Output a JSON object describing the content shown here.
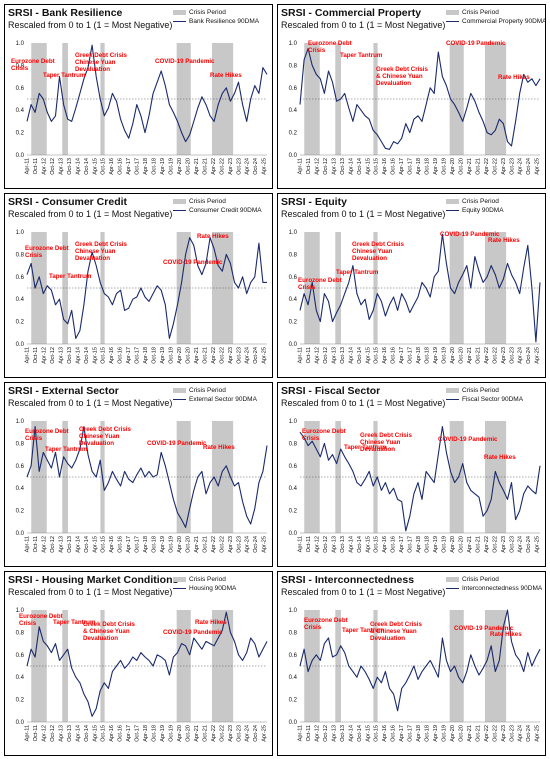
{
  "legend": {
    "crisis_label": "Crisis Period"
  },
  "colors": {
    "line": "#1a2a6c",
    "crisis": "#c8c8c8",
    "annotation": "#ff0000",
    "threshold": "#555555"
  },
  "chart_data": [
    {
      "type": "line",
      "title": "SRSI - Bank Resilience",
      "subtitle": "Rescaled from 0 to 1 (1 = Most Negative)",
      "series": [
        {
          "name": "Bank Resilience 90DMA",
          "values": [
            0.3,
            0.45,
            0.38,
            0.55,
            0.5,
            0.38,
            0.3,
            0.35,
            0.7,
            0.45,
            0.32,
            0.3,
            0.42,
            0.55,
            0.68,
            0.78,
            0.98,
            0.7,
            0.5,
            0.35,
            0.42,
            0.55,
            0.48,
            0.32,
            0.22,
            0.15,
            0.28,
            0.45,
            0.35,
            0.2,
            0.35,
            0.55,
            0.65,
            0.75,
            0.62,
            0.45,
            0.38,
            0.3,
            0.2,
            0.12,
            0.18,
            0.3,
            0.42,
            0.52,
            0.45,
            0.35,
            0.3,
            0.45,
            0.55,
            0.6,
            0.48,
            0.55,
            0.65,
            0.45,
            0.3,
            0.5,
            0.62,
            0.55,
            0.78,
            0.72
          ]
        }
      ],
      "annotations": [
        "Eurozone Debt Crisis",
        "Taper Tantrum",
        "Greek Debt Crisis Chinese Yuan Devaluation",
        "COVID-19 Pandemic",
        "Rate Hikes"
      ]
    },
    {
      "type": "line",
      "title": "SRSI - Commercial Property",
      "subtitle": "Rescaled from 0 to 1 (1 = Most Negative)",
      "series": [
        {
          "name": "Commercial Property 90DMA",
          "values": [
            0.45,
            0.85,
            0.95,
            0.8,
            0.72,
            0.68,
            0.55,
            0.75,
            0.65,
            0.48,
            0.5,
            0.55,
            0.42,
            0.3,
            0.45,
            0.4,
            0.35,
            0.32,
            0.22,
            0.18,
            0.12,
            0.06,
            0.05,
            0.12,
            0.1,
            0.15,
            0.28,
            0.2,
            0.32,
            0.35,
            0.3,
            0.45,
            0.6,
            0.55,
            0.92,
            0.7,
            0.62,
            0.5,
            0.45,
            0.38,
            0.3,
            0.42,
            0.55,
            0.48,
            0.38,
            0.3,
            0.2,
            0.18,
            0.22,
            0.32,
            0.28,
            0.12,
            0.08,
            0.3,
            0.55,
            0.72,
            0.65,
            0.68,
            0.62,
            0.68
          ]
        }
      ],
      "annotations": [
        "Eurozone Debt Crisis",
        "Taper Tantrum",
        "Greek Debt Crisis & Chinese Yuan Devaluation",
        "COVID-19 Pandemic",
        "Rate Hikes"
      ]
    },
    {
      "type": "line",
      "title": "SRSI - Consumer Credit",
      "subtitle": "Rescaled from 0 to 1 (1 = Most Negative)",
      "series": [
        {
          "name": "Consumer Credit 90DMA",
          "values": [
            0.62,
            0.72,
            0.5,
            0.6,
            0.45,
            0.52,
            0.48,
            0.35,
            0.4,
            0.22,
            0.18,
            0.3,
            0.05,
            0.12,
            0.35,
            0.65,
            0.82,
            0.7,
            0.55,
            0.45,
            0.42,
            0.35,
            0.45,
            0.48,
            0.3,
            0.32,
            0.4,
            0.42,
            0.5,
            0.42,
            0.38,
            0.45,
            0.52,
            0.48,
            0.35,
            0.05,
            0.18,
            0.35,
            0.55,
            0.8,
            0.95,
            0.88,
            0.7,
            0.62,
            0.72,
            0.95,
            0.85,
            0.7,
            0.65,
            0.8,
            0.72,
            0.55,
            0.5,
            0.6,
            0.45,
            0.55,
            0.6,
            0.9,
            0.55,
            0.55
          ]
        }
      ],
      "annotations": [
        "Eurozone Debt Crisis",
        "Taper Tantrum",
        "Greek Debt Crisis Chinese Yuan Devaluation",
        "COVID-19 Pandemic",
        "Rate Hikes"
      ]
    },
    {
      "type": "line",
      "title": "SRSI - Equity",
      "subtitle": "Rescaled from 0 to 1 (1 = Most Negative)",
      "series": [
        {
          "name": "Equity 90DMA",
          "values": [
            0.3,
            0.45,
            0.35,
            0.55,
            0.3,
            0.2,
            0.45,
            0.38,
            0.2,
            0.28,
            0.35,
            0.45,
            0.55,
            0.7,
            0.45,
            0.35,
            0.4,
            0.22,
            0.3,
            0.45,
            0.38,
            0.25,
            0.35,
            0.42,
            0.3,
            0.45,
            0.38,
            0.28,
            0.35,
            0.42,
            0.55,
            0.5,
            0.42,
            0.6,
            0.65,
            0.98,
            0.72,
            0.5,
            0.45,
            0.55,
            0.62,
            0.7,
            0.5,
            0.78,
            0.65,
            0.55,
            0.6,
            0.7,
            0.62,
            0.5,
            0.58,
            0.72,
            0.62,
            0.55,
            0.45,
            0.68,
            0.88,
            0.5,
            0.02,
            0.55
          ]
        }
      ],
      "annotations": [
        "Eurozone Debt Crisis",
        "Taper Tantrum",
        "Greek Debt Crisis Chinese Yuan Devaluation",
        "COVID-19 Pandemic",
        "Rate Hikes"
      ]
    },
    {
      "type": "line",
      "title": "SRSI - External Sector",
      "subtitle": "Rescaled from 0 to 1 (1 = Most Negative)",
      "series": [
        {
          "name": "External Sector 90DMA",
          "values": [
            0.5,
            0.6,
            0.95,
            0.55,
            0.72,
            0.65,
            0.58,
            0.72,
            0.5,
            0.68,
            0.62,
            0.58,
            0.65,
            0.75,
            0.95,
            0.7,
            0.55,
            0.5,
            0.65,
            0.38,
            0.45,
            0.55,
            0.48,
            0.42,
            0.55,
            0.48,
            0.45,
            0.52,
            0.58,
            0.5,
            0.55,
            0.5,
            0.52,
            0.72,
            0.6,
            0.45,
            0.3,
            0.18,
            0.12,
            0.05,
            0.22,
            0.38,
            0.5,
            0.55,
            0.35,
            0.45,
            0.5,
            0.42,
            0.55,
            0.6,
            0.5,
            0.42,
            0.45,
            0.28,
            0.15,
            0.08,
            0.22,
            0.45,
            0.55,
            0.78
          ]
        }
      ],
      "annotations": [
        "Eurozone Debt Crisis",
        "Taper Tantrum",
        "Greek Debt Crisis Chinese Yuan Devaluation",
        "COVID-19 Pandemic",
        "Rate Hikes"
      ]
    },
    {
      "type": "line",
      "title": "SRSI - Fiscal Sector",
      "subtitle": "Rescaled from 0 to 1 (1 = Most Negative)",
      "series": [
        {
          "name": "Fiscal Sector 90DMA",
          "values": [
            0.9,
            0.85,
            0.78,
            0.82,
            0.75,
            0.68,
            0.8,
            0.65,
            0.7,
            0.62,
            0.75,
            0.68,
            0.62,
            0.55,
            0.45,
            0.42,
            0.48,
            0.55,
            0.42,
            0.5,
            0.38,
            0.45,
            0.35,
            0.4,
            0.3,
            0.28,
            0.02,
            0.15,
            0.35,
            0.45,
            0.3,
            0.55,
            0.5,
            0.45,
            0.7,
            0.95,
            0.72,
            0.55,
            0.45,
            0.5,
            0.62,
            0.45,
            0.38,
            0.35,
            0.32,
            0.15,
            0.2,
            0.3,
            0.55,
            0.45,
            0.38,
            0.3,
            0.45,
            0.12,
            0.2,
            0.35,
            0.42,
            0.38,
            0.35,
            0.6
          ]
        }
      ],
      "annotations": [
        "Eurozone Debt Crisis",
        "Taper Tantrum",
        "Greek Debt Crisis Chinese Yuan Devaluation",
        "COVID-19 Pandemic",
        "Rate Hikes"
      ]
    },
    {
      "type": "line",
      "title": "SRSI - Housing Market Conditions",
      "subtitle": "Rescaled from 0 to 1 (1 = Most Negative)",
      "series": [
        {
          "name": "Housing 90DMA",
          "values": [
            0.5,
            0.65,
            0.58,
            0.85,
            0.72,
            0.68,
            0.62,
            0.7,
            0.55,
            0.6,
            0.65,
            0.48,
            0.4,
            0.35,
            0.25,
            0.18,
            0.05,
            0.12,
            0.28,
            0.35,
            0.3,
            0.45,
            0.5,
            0.55,
            0.48,
            0.52,
            0.58,
            0.55,
            0.62,
            0.58,
            0.55,
            0.5,
            0.6,
            0.58,
            0.55,
            0.42,
            0.58,
            0.62,
            0.7,
            0.68,
            0.6,
            0.75,
            0.7,
            0.65,
            0.72,
            0.7,
            0.68,
            0.75,
            0.82,
            0.98,
            0.8,
            0.72,
            0.6,
            0.55,
            0.62,
            0.75,
            0.7,
            0.58,
            0.65,
            0.72
          ]
        }
      ],
      "annotations": [
        "Eurozone Debt Crisis",
        "Taper Tantrum",
        "Greek Debt Crisis & Chinese Yuan Devaluation",
        "COVID-19 Pandemic",
        "Rate Hikes"
      ]
    },
    {
      "type": "line",
      "title": "SRSI - Interconnectedness",
      "subtitle": "Rescaled from 0 to 1 (1 = Most Negative)",
      "series": [
        {
          "name": "Interconnectedness 90DMA",
          "values": [
            0.5,
            0.65,
            0.45,
            0.55,
            0.6,
            0.55,
            0.7,
            0.75,
            0.58,
            0.6,
            0.68,
            0.62,
            0.5,
            0.45,
            0.4,
            0.5,
            0.45,
            0.38,
            0.3,
            0.4,
            0.35,
            0.45,
            0.3,
            0.25,
            0.1,
            0.3,
            0.35,
            0.42,
            0.5,
            0.38,
            0.45,
            0.5,
            0.55,
            0.48,
            0.4,
            0.75,
            0.55,
            0.45,
            0.5,
            0.4,
            0.35,
            0.45,
            0.6,
            0.5,
            0.42,
            0.48,
            0.55,
            0.68,
            0.45,
            0.55,
            0.85,
            1.0,
            0.72,
            0.6,
            0.55,
            0.45,
            0.62,
            0.5,
            0.58,
            0.65
          ]
        }
      ],
      "annotations": [
        "Eurozone Debt Crisis",
        "Taper Tantrum",
        "Greek Debt Crisis & Chinese Yuan Devaluation",
        "COVID-19 Pandemic",
        "Rate Hikes"
      ]
    }
  ],
  "shared_axes": {
    "yticks": [
      "0.0",
      "0.2",
      "0.4",
      "0.6",
      "0.8",
      "1.0"
    ],
    "threshold": 0.5,
    "xticks": [
      "Apr-11",
      "Oct-11",
      "Apr-12",
      "Oct-12",
      "Apr-13",
      "Oct-13",
      "Apr-14",
      "Oct-14",
      "Apr-15",
      "Oct-15",
      "Apr-16",
      "Oct-16",
      "Apr-17",
      "Oct-17",
      "Apr-18",
      "Oct-18",
      "Apr-19",
      "Oct-19",
      "Apr-20",
      "Oct-20",
      "Apr-21",
      "Oct-21",
      "Apr-22",
      "Oct-22",
      "Apr-23",
      "Oct-23",
      "Apr-24",
      "Oct-24",
      "Apr-25"
    ],
    "crisis_periods": [
      [
        "2011-07",
        "2012-06"
      ],
      [
        "2013-05",
        "2013-09"
      ],
      [
        "2015-08",
        "2015-11"
      ],
      [
        "2020-02",
        "2020-12"
      ],
      [
        "2022-03",
        "2023-06"
      ]
    ],
    "x_range": [
      "2011-04",
      "2025-06"
    ]
  }
}
